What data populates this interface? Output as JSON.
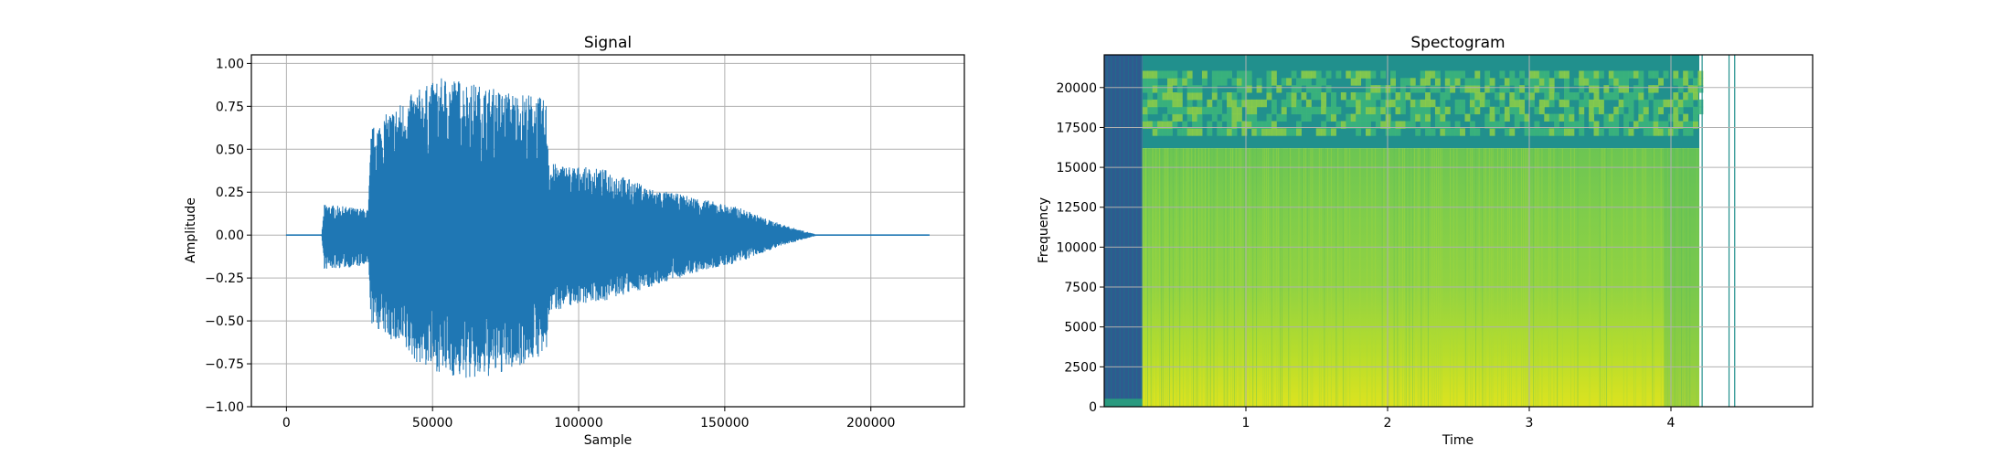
{
  "chart_data": [
    {
      "type": "line",
      "title": "Signal",
      "xlabel": "Sample",
      "ylabel": "Amplitude",
      "xlim": [
        -12000,
        232000
      ],
      "ylim": [
        -1.0,
        1.05
      ],
      "xticks": [
        0,
        50000,
        100000,
        150000,
        200000
      ],
      "xtick_labels": [
        "0",
        "50000",
        "100000",
        "150000",
        "200000"
      ],
      "yticks": [
        -1.0,
        -0.75,
        -0.5,
        -0.25,
        0.0,
        0.25,
        0.5,
        0.75,
        1.0
      ],
      "ytick_labels": [
        "−1.00",
        "−0.75",
        "−0.50",
        "−0.25",
        "0.00",
        "0.25",
        "0.50",
        "0.75",
        "1.00"
      ],
      "grid": true,
      "color": "#1f77b4",
      "series": [
        {
          "x": [
            0,
            12000,
            13000,
            28000,
            29000,
            35000,
            45000,
            55000,
            65000,
            75000,
            85000,
            89000,
            90000,
            100000,
            110000,
            125000,
            140000,
            155000,
            165000,
            172000,
            178000,
            182000,
            220000
          ],
          "upper": [
            0,
            0,
            0.18,
            0.15,
            0.62,
            0.72,
            0.85,
            0.93,
            0.88,
            0.84,
            0.82,
            0.78,
            0.42,
            0.4,
            0.38,
            0.27,
            0.22,
            0.16,
            0.09,
            0.05,
            0.02,
            0,
            0
          ],
          "lower": [
            0,
            0,
            -0.2,
            -0.18,
            -0.52,
            -0.6,
            -0.75,
            -0.82,
            -0.85,
            -0.8,
            -0.72,
            -0.7,
            -0.45,
            -0.4,
            -0.38,
            -0.3,
            -0.22,
            -0.16,
            -0.09,
            -0.05,
            -0.02,
            0,
            0
          ]
        }
      ]
    },
    {
      "type": "heatmap",
      "title": "Spectogram",
      "xlabel": "Time",
      "ylabel": "Frequency",
      "xlim": [
        0,
        5.0
      ],
      "ylim": [
        0,
        22050
      ],
      "xticks": [
        1,
        2,
        3,
        4
      ],
      "xtick_labels": [
        "1",
        "2",
        "3",
        "4"
      ],
      "yticks": [
        0,
        2500,
        5000,
        7500,
        10000,
        12500,
        15000,
        17500,
        20000
      ],
      "ytick_labels": [
        "0",
        "2500",
        "5000",
        "7500",
        "10000",
        "12500",
        "15000",
        "17500",
        "20000"
      ],
      "grid": true,
      "colormap": "viridis",
      "silence_end_time": 0.27,
      "signal_end_time": 4.2,
      "cutoff_frequency": 16200,
      "colors": {
        "silence": "#2f5a8f",
        "background": "#21908d",
        "high_band": "#3cb67a",
        "mid": "#93d341",
        "low": "#d9e41c"
      }
    }
  ]
}
